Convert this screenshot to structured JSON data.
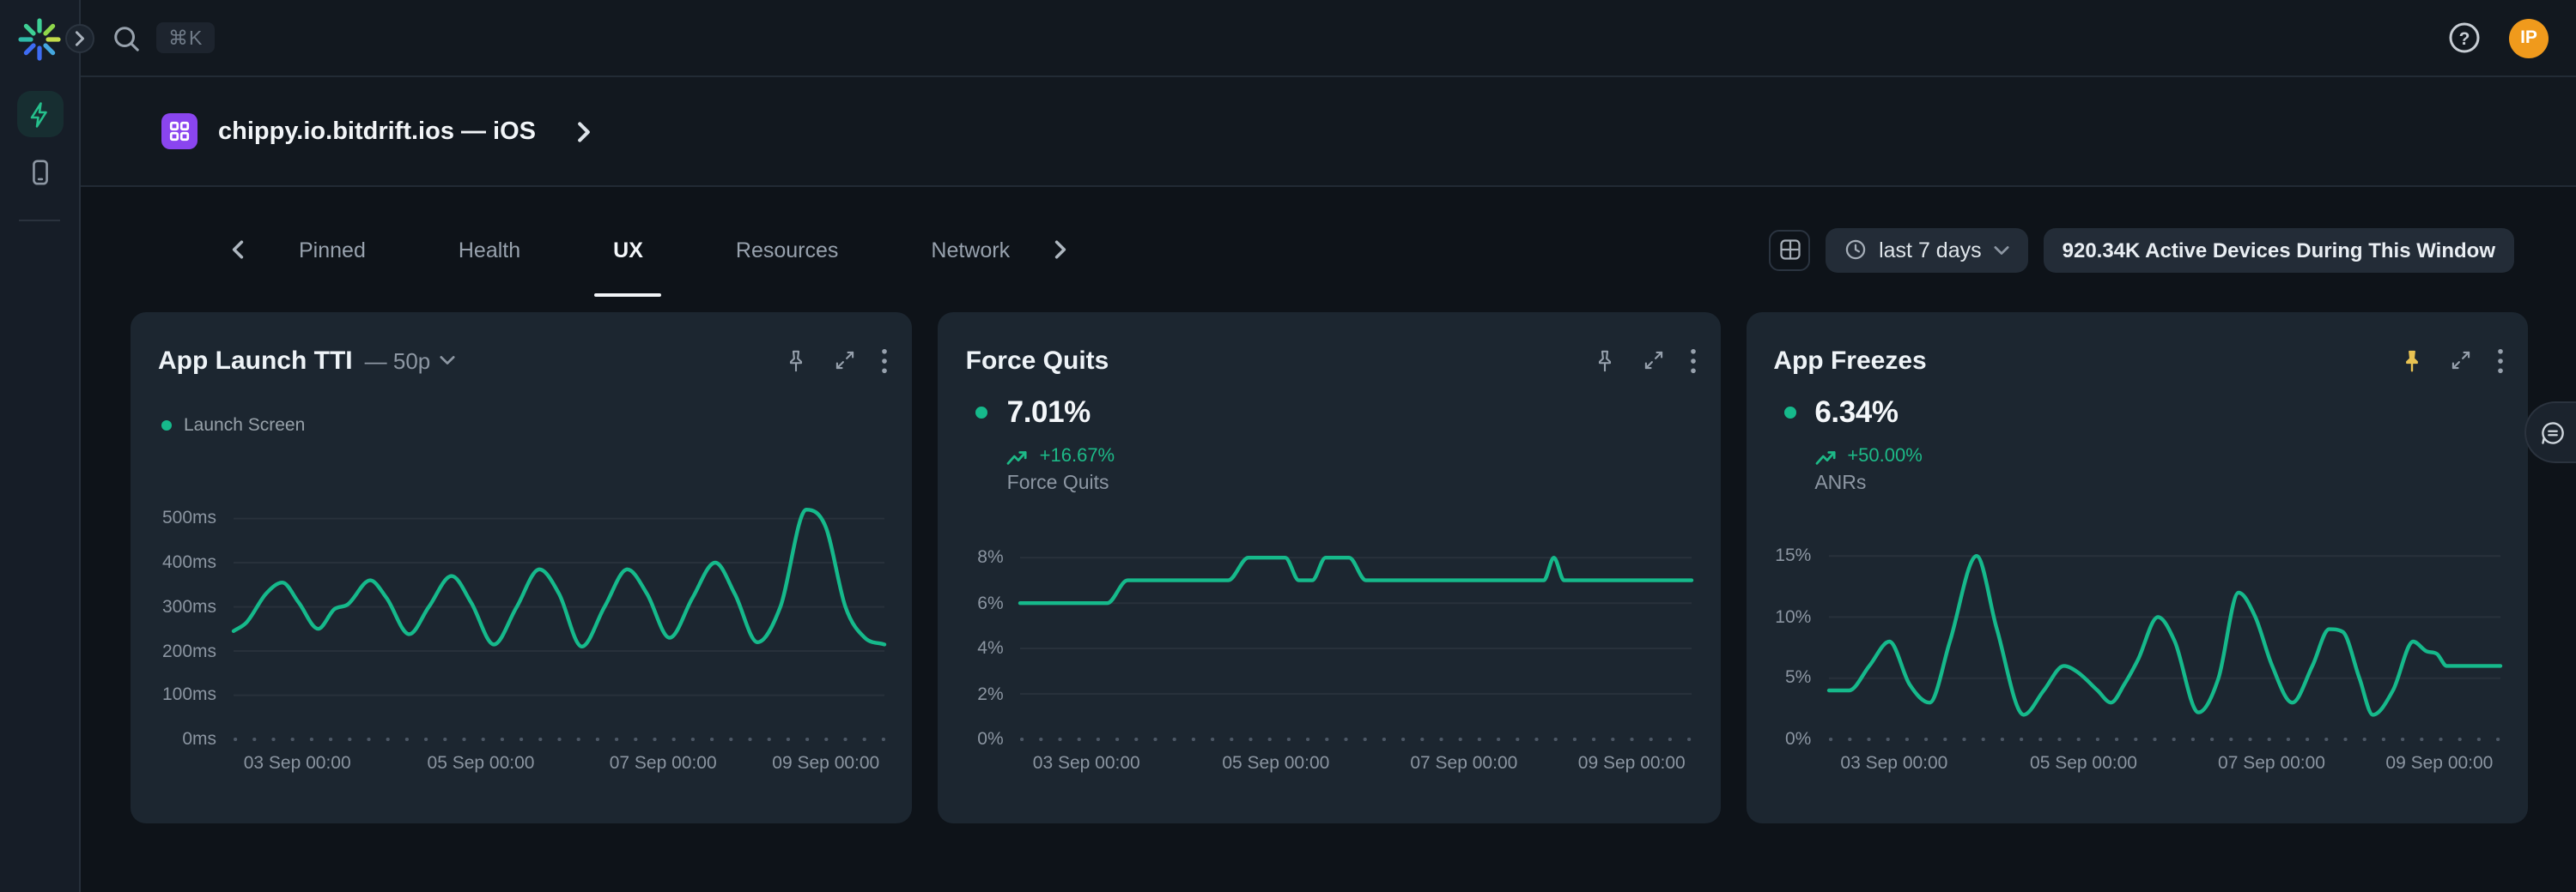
{
  "topbar": {
    "search_shortcut": "⌘K",
    "avatar_initials": "IP"
  },
  "sidebar": {
    "items": [
      {
        "icon": "lightning-icon",
        "active": true
      },
      {
        "icon": "mobile-device-icon",
        "active": false
      }
    ]
  },
  "breadcrumb": {
    "app_name": "chippy.io.bitdrift.ios — iOS"
  },
  "tabs": {
    "items": [
      {
        "label": "Pinned",
        "active": false
      },
      {
        "label": "Health",
        "active": false
      },
      {
        "label": "UX",
        "active": true
      },
      {
        "label": "Resources",
        "active": false
      },
      {
        "label": "Network",
        "active": false
      }
    ]
  },
  "controls": {
    "time_range": "last 7 days",
    "active_devices": "920.34K Active Devices During This Window"
  },
  "colors": {
    "accent_green": "#16b98b",
    "pinned_yellow": "#e8c252",
    "app_icon_purple": "#8a45ef",
    "avatar_orange": "#f09a1c"
  },
  "cards": [
    {
      "title": "App Launch TTI",
      "title_suffix": "— 50p",
      "pinned": false,
      "legend": [
        {
          "label": "Launch Screen",
          "color": "#16b98b"
        }
      ]
    },
    {
      "title": "Force Quits",
      "pinned": false,
      "stat": {
        "value": "7.01%",
        "delta": "+16.67%",
        "label": "Force Quits"
      }
    },
    {
      "title": "App Freezes",
      "pinned": true,
      "stat": {
        "value": "6.34%",
        "delta": "+50.00%",
        "label": "ANRs"
      }
    }
  ],
  "chart_data": [
    {
      "type": "line",
      "title": "App Launch TTI (50p)",
      "ylabel_unit": "ms",
      "ylim": [
        0,
        540
      ],
      "ylabel_width": 40,
      "yticks": [
        {
          "v": 0,
          "label": "0ms"
        },
        {
          "v": 100,
          "label": "100ms"
        },
        {
          "v": 200,
          "label": "200ms"
        },
        {
          "v": 300,
          "label": "300ms"
        },
        {
          "v": 400,
          "label": "400ms"
        },
        {
          "v": 500,
          "label": "500ms"
        }
      ],
      "xticks": [
        {
          "pos": 9.8,
          "label": "03 Sep 00:00"
        },
        {
          "pos": 38,
          "label": "05 Sep 00:00"
        },
        {
          "pos": 66,
          "label": "07 Sep 00:00"
        },
        {
          "pos": 91,
          "label": "09 Sep 00:00"
        }
      ],
      "series": [
        {
          "name": "Launch Screen",
          "color": "#16b98b",
          "points": [
            [
              0,
              245
            ],
            [
              2,
              265
            ],
            [
              5,
              330
            ],
            [
              7.5,
              355
            ],
            [
              10,
              310
            ],
            [
              13,
              250
            ],
            [
              15.5,
              295
            ],
            [
              17.5,
              305
            ],
            [
              21,
              360
            ],
            [
              23.5,
              320
            ],
            [
              27,
              238
            ],
            [
              30,
              300
            ],
            [
              33.5,
              370
            ],
            [
              36.5,
              310
            ],
            [
              40,
              215
            ],
            [
              43.5,
              300
            ],
            [
              47,
              385
            ],
            [
              50,
              330
            ],
            [
              53.5,
              210
            ],
            [
              57,
              300
            ],
            [
              60.5,
              385
            ],
            [
              63.5,
              330
            ],
            [
              67,
              230
            ],
            [
              70.5,
              320
            ],
            [
              74,
              400
            ],
            [
              77,
              330
            ],
            [
              80.5,
              220
            ],
            [
              84,
              300
            ],
            [
              88,
              520
            ],
            [
              91,
              480
            ],
            [
              94,
              300
            ],
            [
              97,
              230
            ],
            [
              100,
              215
            ]
          ]
        }
      ]
    },
    {
      "type": "line",
      "title": "Force Quits",
      "ylabel_unit": "%",
      "ylim": [
        0,
        10.5
      ],
      "ylabel_width": 28,
      "yticks": [
        {
          "v": 0,
          "label": "0%"
        },
        {
          "v": 2,
          "label": "2%"
        },
        {
          "v": 4,
          "label": "4%"
        },
        {
          "v": 6,
          "label": "6%"
        },
        {
          "v": 8,
          "label": "8%"
        }
      ],
      "xticks": [
        {
          "pos": 9.8,
          "label": "03 Sep 00:00"
        },
        {
          "pos": 38,
          "label": "05 Sep 00:00"
        },
        {
          "pos": 66,
          "label": "07 Sep 00:00"
        },
        {
          "pos": 91,
          "label": "09 Sep 00:00"
        }
      ],
      "series": [
        {
          "name": "Force Quits",
          "color": "#16b98b",
          "points": [
            [
              0,
              6
            ],
            [
              5,
              6
            ],
            [
              10,
              6
            ],
            [
              13,
              6
            ],
            [
              16,
              7
            ],
            [
              20,
              7
            ],
            [
              26,
              7
            ],
            [
              31,
              7
            ],
            [
              34,
              8
            ],
            [
              37,
              8
            ],
            [
              39.5,
              8
            ],
            [
              41.5,
              7
            ],
            [
              43.5,
              7
            ],
            [
              45.5,
              8
            ],
            [
              47.5,
              8
            ],
            [
              49,
              8
            ],
            [
              51.5,
              7
            ],
            [
              56,
              7
            ],
            [
              62,
              7
            ],
            [
              70,
              7
            ],
            [
              76,
              7
            ],
            [
              78,
              7
            ],
            [
              79.5,
              8
            ],
            [
              81,
              7
            ],
            [
              85,
              7
            ],
            [
              92,
              7
            ],
            [
              100,
              7
            ]
          ]
        }
      ]
    },
    {
      "type": "line",
      "title": "App Freezes (ANRs)",
      "ylabel_unit": "%",
      "ylim": [
        0,
        19.5
      ],
      "ylabel_width": 28,
      "yticks": [
        {
          "v": 0,
          "label": "0%"
        },
        {
          "v": 5,
          "label": "5%"
        },
        {
          "v": 10,
          "label": "10%"
        },
        {
          "v": 15,
          "label": "15%"
        }
      ],
      "xticks": [
        {
          "pos": 9.8,
          "label": "03 Sep 00:00"
        },
        {
          "pos": 38,
          "label": "05 Sep 00:00"
        },
        {
          "pos": 66,
          "label": "07 Sep 00:00"
        },
        {
          "pos": 91,
          "label": "09 Sep 00:00"
        }
      ],
      "series": [
        {
          "name": "ANRs",
          "color": "#16b98b",
          "points": [
            [
              0,
              4
            ],
            [
              3,
              4
            ],
            [
              6,
              6
            ],
            [
              9,
              8
            ],
            [
              12,
              4.5
            ],
            [
              15,
              3
            ],
            [
              18,
              8
            ],
            [
              22,
              15
            ],
            [
              25,
              9
            ],
            [
              29,
              2
            ],
            [
              32,
              4
            ],
            [
              35,
              6
            ],
            [
              37,
              5.5
            ],
            [
              40,
              4
            ],
            [
              42,
              3
            ],
            [
              44,
              4.5
            ],
            [
              46,
              6.5
            ],
            [
              49,
              10
            ],
            [
              51.5,
              8
            ],
            [
              55,
              2.2
            ],
            [
              58,
              5
            ],
            [
              61,
              12
            ],
            [
              63.5,
              10
            ],
            [
              66,
              6
            ],
            [
              69,
              3
            ],
            [
              72,
              6
            ],
            [
              74.5,
              9
            ],
            [
              76.5,
              8.8
            ],
            [
              79,
              5
            ],
            [
              81,
              2
            ],
            [
              84,
              4
            ],
            [
              87,
              8
            ],
            [
              89,
              7.2
            ],
            [
              90.5,
              7
            ],
            [
              92,
              6
            ],
            [
              96,
              6
            ],
            [
              100,
              6
            ]
          ]
        }
      ]
    }
  ]
}
